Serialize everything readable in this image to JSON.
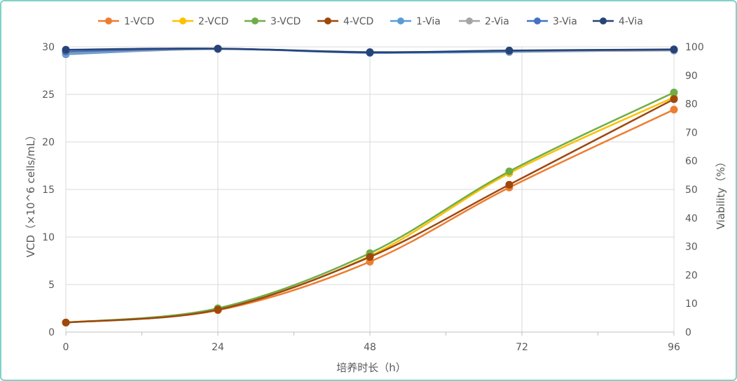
{
  "chart_data": {
    "type": "line",
    "x": [
      0,
      24,
      48,
      70,
      96
    ],
    "xticks": [
      0,
      24,
      48,
      72,
      96
    ],
    "xlabel": "培养时长（h）",
    "ylabel_left": "VCD（×10^6 cells/mL）",
    "ylabel_right": "Viability（%）",
    "ylim_left": [
      0,
      30
    ],
    "yticks_left": [
      0,
      5,
      10,
      15,
      20,
      25,
      30
    ],
    "ylim_right": [
      0,
      100
    ],
    "yticks_right": [
      0,
      10,
      20,
      30,
      40,
      50,
      60,
      70,
      80,
      90,
      100
    ],
    "grid": true,
    "legend_position": "top",
    "series": [
      {
        "name": "1-VCD",
        "axis": "left",
        "color": "#ed7d31",
        "values": [
          1.0,
          2.3,
          7.4,
          15.2,
          23.4
        ]
      },
      {
        "name": "2-VCD",
        "axis": "left",
        "color": "#ffc000",
        "values": [
          1.0,
          2.4,
          8.0,
          16.7,
          24.7
        ]
      },
      {
        "name": "3-VCD",
        "axis": "left",
        "color": "#70ad47",
        "values": [
          1.0,
          2.5,
          8.3,
          16.9,
          25.2
        ]
      },
      {
        "name": "4-VCD",
        "axis": "left",
        "color": "#9e480e",
        "values": [
          1.0,
          2.35,
          7.9,
          15.5,
          24.5
        ]
      },
      {
        "name": "1-Via",
        "axis": "right",
        "color": "#5b9bd5",
        "values": [
          97.4,
          99.3,
          98.0,
          98.2,
          98.9
        ]
      },
      {
        "name": "2-Via",
        "axis": "right",
        "color": "#a5a5a5",
        "values": [
          98.0,
          99.2,
          98.2,
          98.4,
          98.7
        ]
      },
      {
        "name": "3-Via",
        "axis": "right",
        "color": "#4472c4",
        "values": [
          98.3,
          99.3,
          97.9,
          98.6,
          99.0
        ]
      },
      {
        "name": "4-Via",
        "axis": "right",
        "color": "#264478",
        "values": [
          99.0,
          99.4,
          98.1,
          98.7,
          99.1
        ]
      }
    ]
  }
}
